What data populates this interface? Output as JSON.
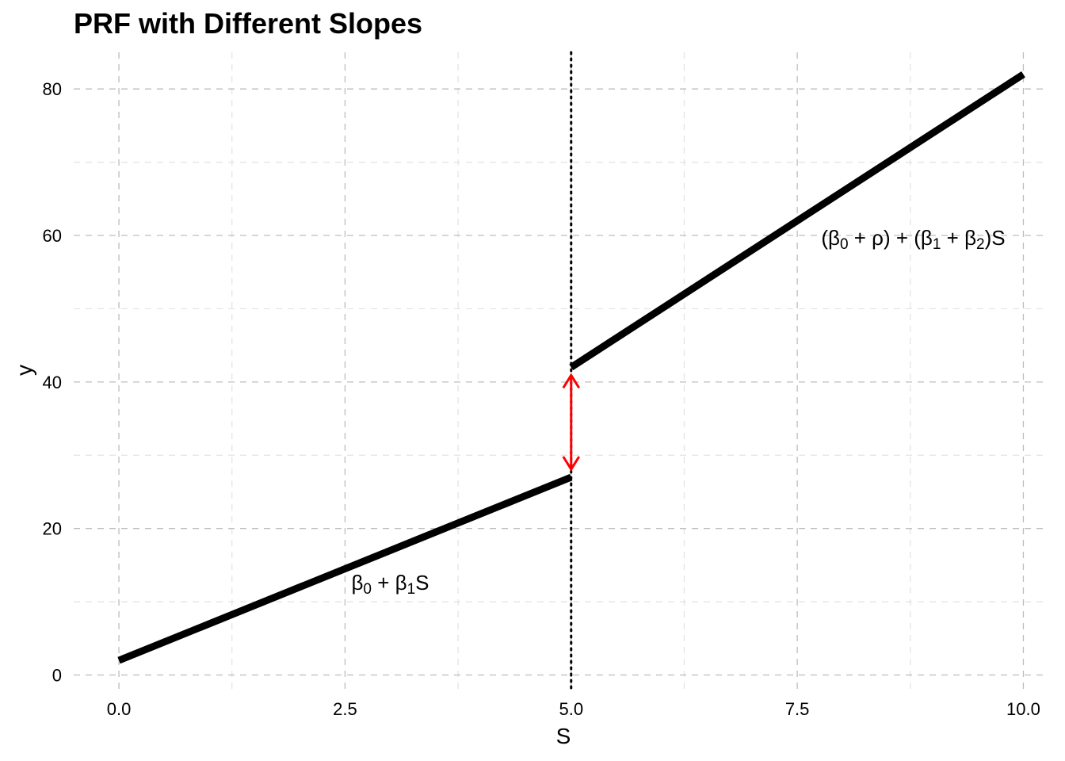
{
  "chart_data": {
    "type": "line",
    "title": "PRF with Different Slopes",
    "xlabel": "S",
    "ylabel": "y",
    "xlim": [
      -0.5,
      10.25
    ],
    "ylim": [
      -2,
      85
    ],
    "x_ticks": [
      0,
      2.5,
      5,
      7.5,
      10
    ],
    "x_tick_labels": [
      "0.0",
      "2.5",
      "5.0",
      "7.5",
      "10.0"
    ],
    "y_ticks": [
      0,
      20,
      40,
      60,
      80
    ],
    "y_tick_labels": [
      "0",
      "20",
      "40",
      "60",
      "80"
    ],
    "grid": true,
    "series": [
      {
        "x": [
          0,
          5
        ],
        "y": [
          2,
          27
        ],
        "color": "#000000"
      },
      {
        "x": [
          5,
          10
        ],
        "y": [
          42,
          82
        ],
        "color": "#000000"
      }
    ],
    "cutoff": {
      "x": 5
    },
    "gap_arrow": {
      "x": 5,
      "y_from": 27,
      "y_to": 42,
      "color": "#ff0000"
    },
    "annotations": [
      {
        "x": 3.0,
        "y": 12.7,
        "label": "β0 + β1S"
      },
      {
        "x": 9.8,
        "y": 59.8,
        "label": "(β0 + ρ) + (β1 + β2)S"
      }
    ]
  }
}
